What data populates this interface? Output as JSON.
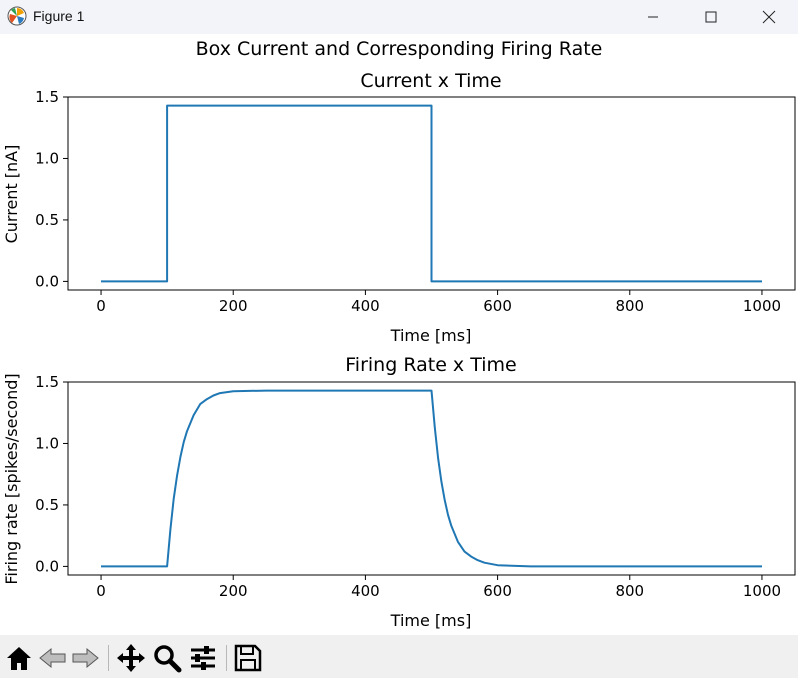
{
  "window": {
    "title": "Figure 1",
    "icon": "matplotlib-figure-icon",
    "controls": [
      "minimize-icon",
      "maximize-icon",
      "close-icon"
    ]
  },
  "figure": {
    "suptitle": "Box Current and Corresponding Firing Rate",
    "line_color": "#1f77b4"
  },
  "chart_data": [
    {
      "type": "line",
      "title": "Current x Time",
      "xlabel": "Time [ms]",
      "ylabel": "Current [nA]",
      "xlim": [
        -50,
        1050
      ],
      "ylim": [
        -0.07,
        1.5
      ],
      "xticks": [
        0,
        200,
        400,
        600,
        800,
        1000
      ],
      "xtick_labels": [
        "0",
        "200",
        "400",
        "600",
        "800",
        "1000"
      ],
      "yticks": [
        0.0,
        0.5,
        1.0,
        1.5
      ],
      "ytick_labels": [
        "0.0",
        "0.5",
        "1.0",
        "1.5"
      ],
      "grid": false,
      "series": [
        {
          "x": [
            0,
            100,
            100,
            500,
            500,
            1000
          ],
          "y": [
            0,
            0,
            1.43,
            1.43,
            0,
            0
          ]
        }
      ]
    },
    {
      "type": "line",
      "title": "Firing Rate x Time",
      "xlabel": "Time [ms]",
      "ylabel": "Firing rate [spikes/second]",
      "xlim": [
        -50,
        1050
      ],
      "ylim": [
        -0.07,
        1.5
      ],
      "xticks": [
        0,
        200,
        400,
        600,
        800,
        1000
      ],
      "xtick_labels": [
        "0",
        "200",
        "400",
        "600",
        "800",
        "1000"
      ],
      "yticks": [
        0.0,
        0.5,
        1.0,
        1.5
      ],
      "ytick_labels": [
        "0.0",
        "0.5",
        "1.0",
        "1.5"
      ],
      "grid": false,
      "series": [
        {
          "x": [
            0,
            100,
            105,
            110,
            115,
            120,
            125,
            130,
            140,
            150,
            160,
            170,
            180,
            200,
            250,
            300,
            400,
            500,
            505,
            510,
            515,
            520,
            525,
            530,
            540,
            550,
            560,
            570,
            580,
            600,
            650,
            700,
            800,
            1000
          ],
          "y": [
            0,
            0,
            0.3,
            0.55,
            0.74,
            0.89,
            1.01,
            1.1,
            1.23,
            1.32,
            1.36,
            1.39,
            1.41,
            1.425,
            1.43,
            1.43,
            1.43,
            1.43,
            1.13,
            0.88,
            0.69,
            0.54,
            0.42,
            0.33,
            0.2,
            0.12,
            0.08,
            0.05,
            0.03,
            0.01,
            0.0,
            0.0,
            0.0,
            0.0
          ]
        }
      ]
    }
  ],
  "toolbar": {
    "tools": [
      "home-icon",
      "back-icon",
      "forward-icon",
      "pan-icon",
      "zoom-icon",
      "configure-subplots-icon",
      "save-icon"
    ]
  }
}
